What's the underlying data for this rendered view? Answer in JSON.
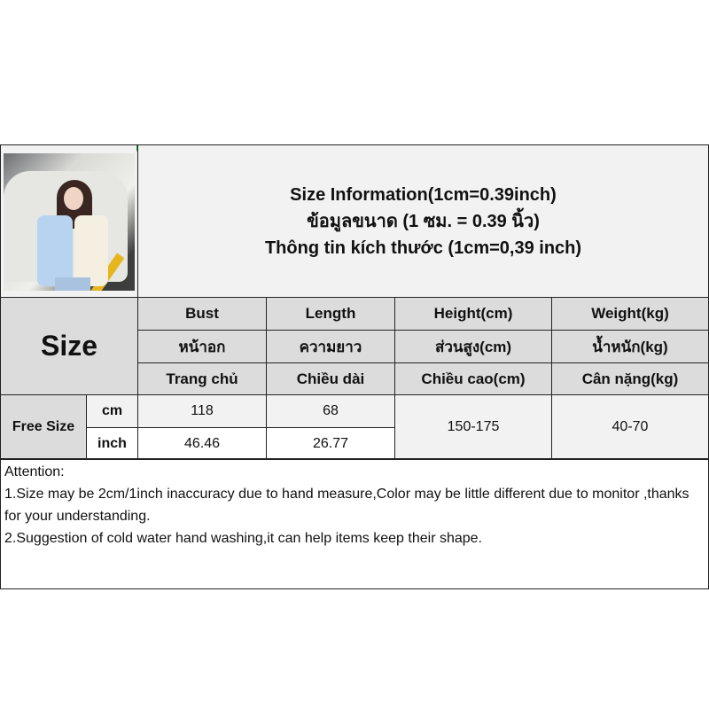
{
  "title_lines": [
    "Size Information(1cm=0.39inch)",
    "ข้อมูลขนาด (1 ซม. = 0.39 นิ้ว)",
    "Thông tin kích thước (1cm=0,39 inch)"
  ],
  "size_label": "Size",
  "columns": [
    {
      "en": "Bust",
      "th": "หน้าอก",
      "vi": "Trang chủ"
    },
    {
      "en": "Length",
      "th": "ความยาว",
      "vi": "Chiều dài"
    },
    {
      "en": "Height(cm)",
      "th": "ส่วนสูง(cm)",
      "vi": "Chiều cao(cm)"
    },
    {
      "en": "Weight(kg)",
      "th": "น้ำหนัก(kg)",
      "vi": "Cân nặng(kg)"
    }
  ],
  "row": {
    "size": "Free Size",
    "units": [
      "cm",
      "inch"
    ],
    "bust": [
      "118",
      "46.46"
    ],
    "length": [
      "68",
      "26.77"
    ],
    "height": "150-175",
    "weight": "40-70"
  },
  "attention": {
    "heading": "Attention:",
    "lines": [
      "1.Size may be 2cm/1inch inaccuracy due to hand measure,Color may be little different due to monitor ,thanks for your understanding.",
      "2.Suggestion of cold water hand washing,it can help items keep their shape."
    ]
  },
  "colors": {
    "header_bg": "#dcdcdc",
    "light_bg": "#f2f2f2",
    "border": "#222222",
    "marker": "#1a9a2a"
  }
}
